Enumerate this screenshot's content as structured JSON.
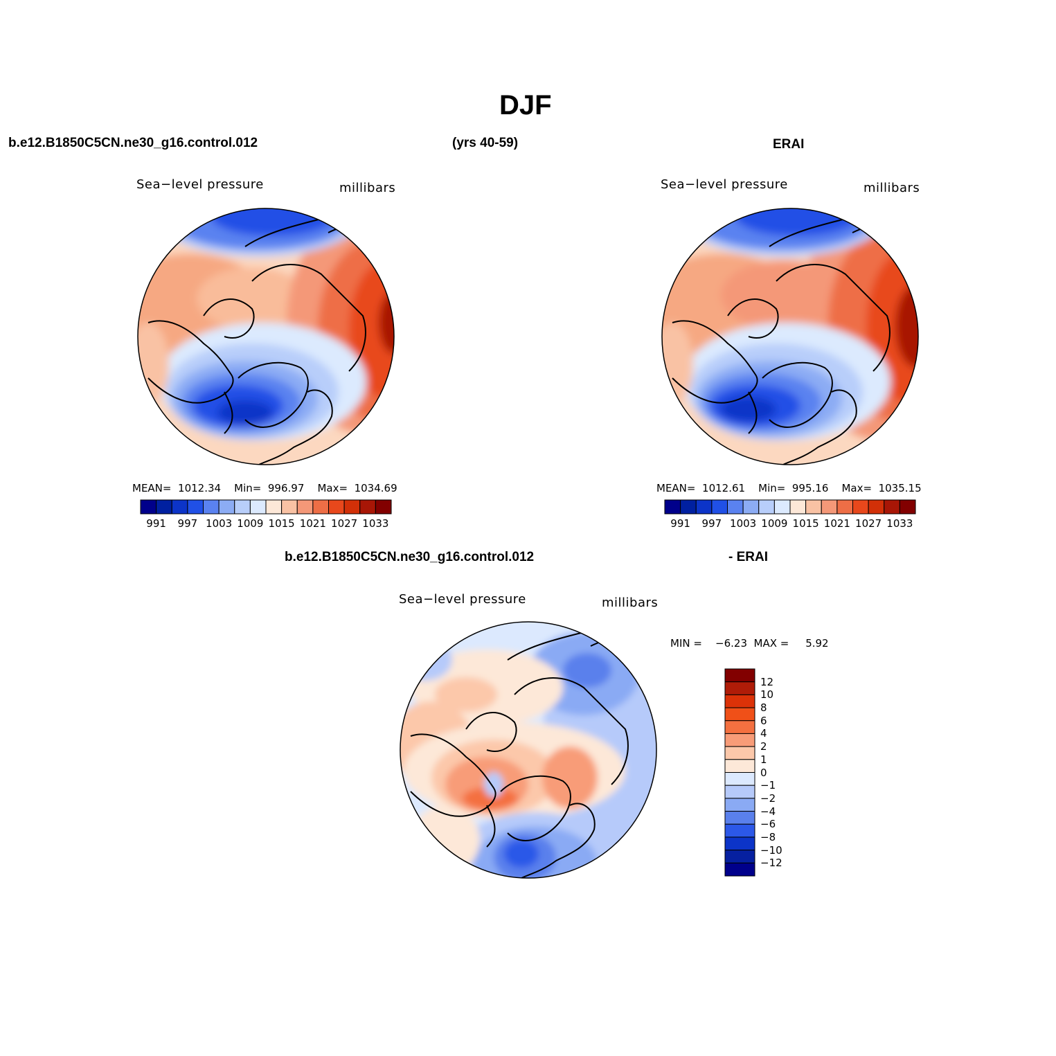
{
  "title": "DJF",
  "header": {
    "case": "b.e12.B1850C5CN.ne30_g16.control.012",
    "years": "(yrs 40-59)",
    "obs": "ERAI"
  },
  "panels": [
    {
      "id": "model",
      "field": "Sea−level pressure",
      "units": "millibars",
      "stats": {
        "mean_label": "MEAN=",
        "mean": "1012.34",
        "min_label": "Min=",
        "min": "996.97",
        "max_label": "Max=",
        "max": "1034.69"
      }
    },
    {
      "id": "obs",
      "field": "Sea−level pressure",
      "units": "millibars",
      "stats": {
        "mean_label": "MEAN=",
        "mean": "1012.61",
        "min_label": "Min=",
        "min": "995.16",
        "max_label": "Max=",
        "max": "1035.15"
      }
    }
  ],
  "diff": {
    "label_left": "b.e12.B1850C5CN.ne30_g16.control.012",
    "label_right": "- ERAI",
    "field": "Sea−level pressure",
    "units": "millibars",
    "min_label": "MIN =",
    "min": "−6.23",
    "max_label": "MAX =",
    "max": "5.92"
  },
  "colorbar_abs": {
    "colors": [
      "#00008b",
      "#0020a0",
      "#0c34c8",
      "#2050e6",
      "#5a82f0",
      "#8cacf4",
      "#b8cefa",
      "#dceafe",
      "#fde8d8",
      "#f9c2a4",
      "#f49878",
      "#ee6e46",
      "#e8481c",
      "#d23008",
      "#a81606",
      "#820000"
    ],
    "labels": [
      "991",
      "997",
      "1003",
      "1009",
      "1015",
      "1021",
      "1027",
      "1033"
    ]
  },
  "colorbar_diff": {
    "colors": [
      "#820000",
      "#b01c08",
      "#dc3208",
      "#f05018",
      "#f47040",
      "#f89c78",
      "#fcc8aa",
      "#fde8d8",
      "#dce9fe",
      "#b6cafa",
      "#8aaaf4",
      "#5a80ec",
      "#2c58e8",
      "#0c34c8",
      "#0620a0",
      "#00008b"
    ],
    "labels": [
      "12",
      "10",
      "8",
      "6",
      "4",
      "2",
      "1",
      "0",
      "−1",
      "−2",
      "−4",
      "−6",
      "−8",
      "−10",
      "−12"
    ]
  }
}
